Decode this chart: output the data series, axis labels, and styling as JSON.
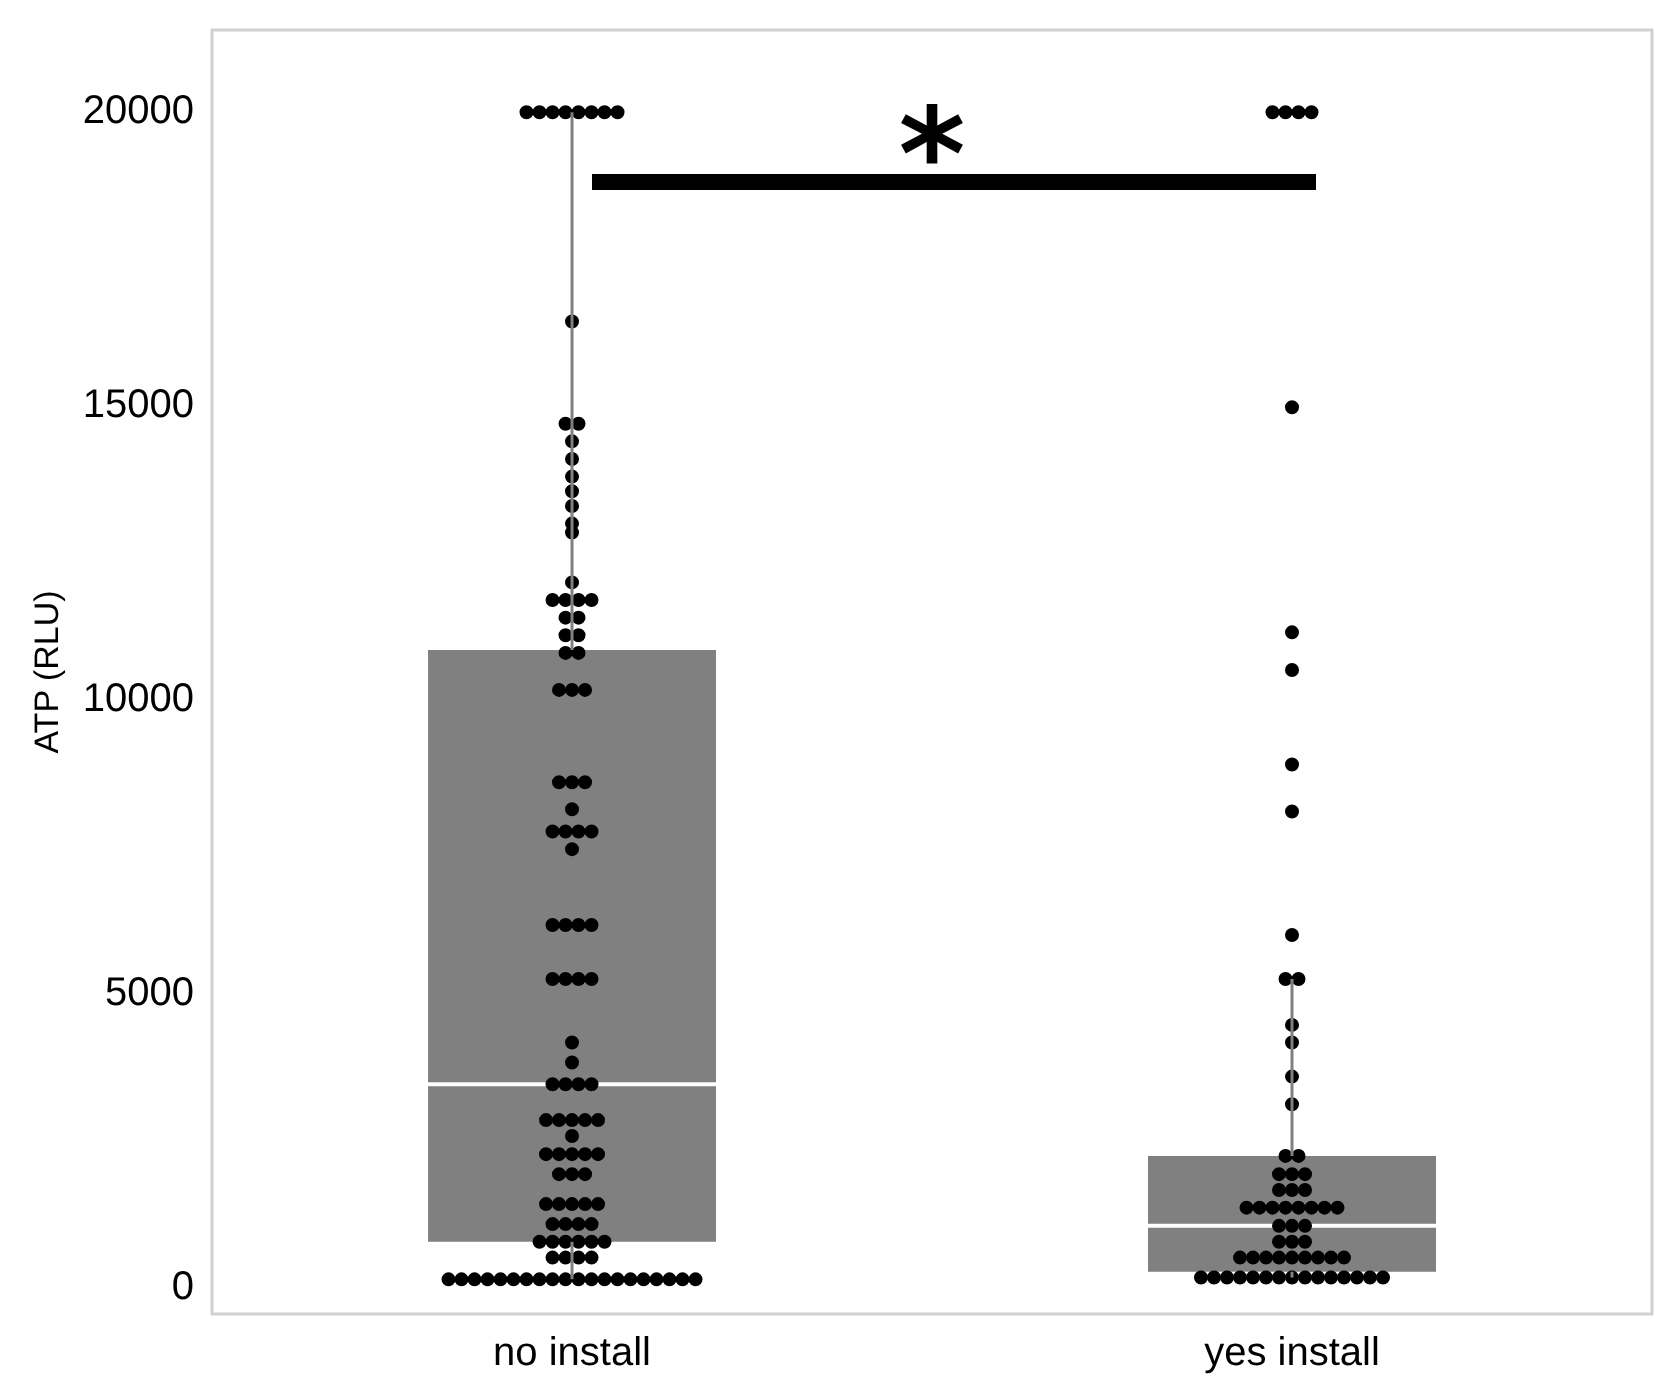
{
  "chart_data": {
    "type": "box",
    "ylabel": "ATP (RLU)",
    "categories": [
      "no install",
      "yes install"
    ],
    "color": "#808080",
    "boxes": [
      {
        "low": 140,
        "q1": 780,
        "median": 3460,
        "q3": 10850,
        "high": 20000
      },
      {
        "low": 170,
        "q1": 270,
        "median": 1050,
        "q3": 2240,
        "high": 5250
      }
    ],
    "series": [
      {
        "type": "scatter",
        "color": "#000000",
        "marker": "circle",
        "x": [
          "no install",
          "no install",
          "no install",
          "no install",
          "no install",
          "no install",
          "no install",
          "no install",
          "no install",
          "no install",
          "no install",
          "no install",
          "no install",
          "no install",
          "no install",
          "no install",
          "no install",
          "no install",
          "no install",
          "no install",
          "no install",
          "no install",
          "no install",
          "no install",
          "no install",
          "no install",
          "no install",
          "no install",
          "no install",
          "no install",
          "no install",
          "no install",
          "no install",
          "no install",
          "no install",
          "no install",
          "no install",
          "no install",
          "no install",
          "no install",
          "no install",
          "no install",
          "no install",
          "no install",
          "no install",
          "no install",
          "no install",
          "no install",
          "no install",
          "no install",
          "no install",
          "no install",
          "no install",
          "no install",
          "no install",
          "no install",
          "no install",
          "no install",
          "no install",
          "no install",
          "no install",
          "no install",
          "no install",
          "no install",
          "no install",
          "no install",
          "no install",
          "no install",
          "no install",
          "no install",
          "no install",
          "no install",
          "no install",
          "no install",
          "no install",
          "no install",
          "no install",
          "no install",
          "no install",
          "no install",
          "no install",
          "no install",
          "no install",
          "no install",
          "no install",
          "no install",
          "no install",
          "no install",
          "no install",
          "no install",
          "no install",
          "no install",
          "no install",
          "no install",
          "no install",
          "no install",
          "no install",
          "no install",
          "no install",
          "no install",
          "no install",
          "no install",
          "no install",
          "no install",
          "no install",
          "no install",
          "no install",
          "no install"
        ],
        "values": [
          20000,
          20000,
          20000,
          20000,
          20000,
          20000,
          20000,
          20000,
          16440,
          14700,
          14700,
          14400,
          14100,
          13800,
          13550,
          13300,
          13000,
          12850,
          12000,
          11700,
          11700,
          11700,
          11700,
          11400,
          11400,
          11100,
          11100,
          10800,
          10800,
          10170,
          10170,
          10170,
          8600,
          8600,
          8600,
          8140,
          7760,
          7760,
          7760,
          7760,
          7460,
          6170,
          6170,
          6170,
          6170,
          5250,
          5250,
          5250,
          5250,
          4170,
          3830,
          3460,
          3460,
          3460,
          3460,
          2850,
          2850,
          2850,
          2850,
          2850,
          2580,
          2270,
          2270,
          2270,
          2270,
          2270,
          1930,
          1930,
          1930,
          1420,
          1420,
          1420,
          1420,
          1420,
          1080,
          1080,
          1080,
          1080,
          780,
          780,
          780,
          780,
          780,
          780,
          510,
          510,
          510,
          510,
          140,
          140,
          140,
          140,
          140,
          140,
          140,
          140,
          140,
          140,
          140,
          140,
          140,
          140,
          140,
          140,
          140,
          140,
          140,
          140
        ]
      },
      {
        "type": "scatter",
        "color": "#000000",
        "marker": "circle",
        "x": [
          "yes install",
          "yes install",
          "yes install",
          "yes install",
          "yes install",
          "yes install",
          "yes install",
          "yes install",
          "yes install",
          "yes install",
          "yes install",
          "yes install",
          "yes install",
          "yes install",
          "yes install",
          "yes install",
          "yes install",
          "yes install",
          "yes install",
          "yes install",
          "yes install",
          "yes install",
          "yes install",
          "yes install",
          "yes install",
          "yes install",
          "yes install",
          "yes install",
          "yes install",
          "yes install",
          "yes install",
          "yes install",
          "yes install",
          "yes install",
          "yes install",
          "yes install",
          "yes install",
          "yes install",
          "yes install",
          "yes install",
          "yes install",
          "yes install",
          "yes install",
          "yes install",
          "yes install",
          "yes install",
          "yes install",
          "yes install",
          "yes install",
          "yes install",
          "yes install",
          "yes install",
          "yes install",
          "yes install",
          "yes install",
          "yes install",
          "yes install",
          "yes install",
          "yes install",
          "yes install",
          "yes install",
          "yes install"
        ],
        "values": [
          20000,
          20000,
          20000,
          20000,
          14980,
          11150,
          10510,
          8900,
          8100,
          6000,
          5250,
          5250,
          4470,
          4170,
          3590,
          3120,
          2240,
          2240,
          1930,
          1930,
          1930,
          1660,
          1660,
          1660,
          1360,
          1360,
          1360,
          1360,
          1360,
          1360,
          1360,
          1360,
          1050,
          1050,
          1050,
          780,
          780,
          780,
          510,
          510,
          510,
          510,
          510,
          510,
          510,
          510,
          510,
          170,
          170,
          170,
          170,
          170,
          170,
          170,
          170,
          170,
          170,
          170,
          170,
          170,
          170,
          170
        ]
      }
    ],
    "ylim": [
      -450,
      21400
    ],
    "yticks": [
      0,
      5000,
      10000,
      15000,
      20000
    ],
    "grid": false,
    "legend": false,
    "annotations": [
      "*"
    ]
  }
}
